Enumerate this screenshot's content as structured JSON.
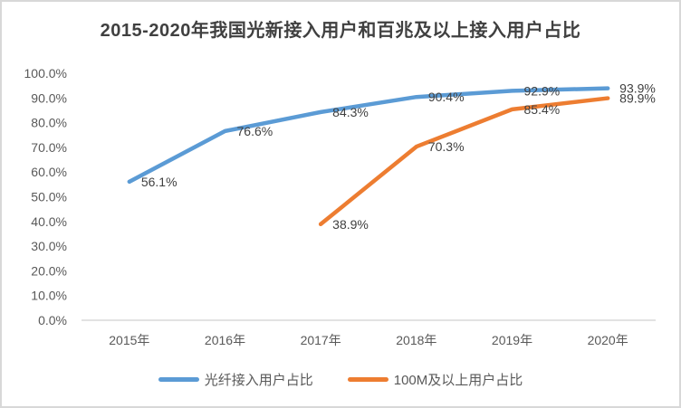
{
  "chart_data": {
    "type": "line",
    "title": "2015-2020年我国光新接入用户和百兆及以上接入用户占比",
    "categories": [
      "2015年",
      "2016年",
      "2017年",
      "2018年",
      "2019年",
      "2020年"
    ],
    "series": [
      {
        "name": "光纤接入用户占比",
        "color": "#5B9BD5",
        "values": [
          56.1,
          76.6,
          84.3,
          90.4,
          92.9,
          93.9
        ],
        "labels": [
          "56.1%",
          "76.6%",
          "84.3%",
          "90.4%",
          "92.9%",
          "93.9%"
        ]
      },
      {
        "name": "100M及以上用户占比",
        "color": "#ED7D31",
        "values": [
          null,
          null,
          38.9,
          70.3,
          85.4,
          89.9
        ],
        "labels": [
          null,
          null,
          "38.9%",
          "70.3%",
          "85.4%",
          "89.9%"
        ]
      }
    ],
    "ylim": [
      0,
      100
    ],
    "y_ticks": [
      "100.0%",
      "90.0%",
      "80.0%",
      "70.0%",
      "60.0%",
      "50.0%",
      "40.0%",
      "30.0%",
      "20.0%",
      "10.0%",
      "0.0%"
    ],
    "grid": false,
    "legend_position": "bottom",
    "axis_line_color": "#d9d9d9",
    "tick_label_color": "#595959",
    "data_label_color": "#404040",
    "title_color": "#404040"
  }
}
